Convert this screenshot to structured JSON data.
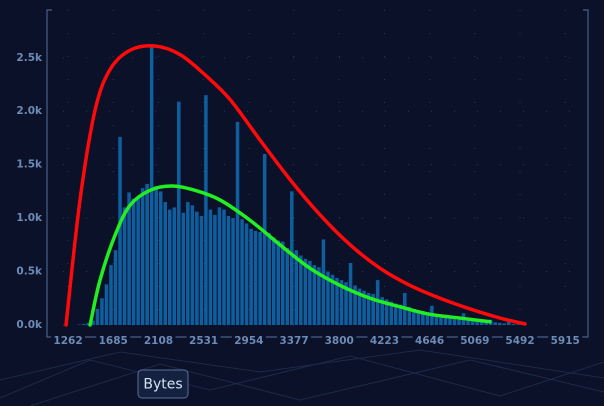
{
  "chart_data": {
    "type": "histogram",
    "xlabel": "Bytes",
    "bins": [
      1262,
      1304.3,
      1346.6,
      1388.9,
      1431.2,
      1473.5,
      1515.8,
      1558.1,
      1600.4,
      1642.7,
      1685,
      1727.3,
      1769.6,
      1811.9,
      1854.2,
      1896.5,
      1938.8,
      1981.1,
      2023.4,
      2065.7,
      2108,
      2150.3,
      2192.6,
      2234.9,
      2277.2,
      2319.5,
      2361.8,
      2404.1,
      2446.4,
      2488.7,
      2531,
      2573.3,
      2615.6,
      2657.9,
      2700.2,
      2742.5,
      2784.8,
      2827.1,
      2869.4,
      2911.7,
      2954,
      2996.3,
      3038.6,
      3080.9,
      3123.2,
      3165.5,
      3207.8,
      3250.1,
      3292.4,
      3334.7,
      3377,
      3419.3,
      3461.6,
      3503.9,
      3546.2,
      3588.5,
      3630.8,
      3673.1,
      3715.4,
      3757.7,
      3800,
      3842.3,
      3884.6,
      3926.9,
      3969.2,
      4011.5,
      4053.8,
      4096.1,
      4138.4,
      4180.7,
      4223,
      4265.3,
      4307.6,
      4349.9,
      4392.2,
      4434.5,
      4476.8,
      4519.1,
      4561.4,
      4603.7,
      4646,
      4688.3,
      4730.6,
      4772.9,
      4815.2,
      4857.5,
      4899.8,
      4942.1,
      4984.4,
      5026.7,
      5069,
      5111.3,
      5153.6,
      5195.9,
      5238.2,
      5280.5,
      5322.8,
      5365.1,
      5407.4,
      5449.7,
      5492
    ],
    "values": [
      0,
      0,
      5,
      10,
      20,
      40,
      150,
      250,
      380,
      560,
      700,
      1760,
      1100,
      1240,
      1180,
      1200,
      1280,
      1320,
      2600,
      1300,
      1250,
      1150,
      1080,
      1100,
      2090,
      1050,
      1150,
      1120,
      1060,
      1020,
      2150,
      1080,
      1030,
      1100,
      1080,
      1020,
      1000,
      1900,
      990,
      950,
      900,
      880,
      870,
      1600,
      860,
      820,
      790,
      780,
      720,
      1250,
      700,
      650,
      620,
      600,
      560,
      540,
      800,
      500,
      470,
      440,
      420,
      400,
      580,
      370,
      340,
      320,
      300,
      290,
      420,
      260,
      240,
      220,
      200,
      190,
      300,
      170,
      150,
      140,
      130,
      120,
      180,
      100,
      90,
      80,
      75,
      70,
      60,
      110,
      50,
      45,
      40,
      35,
      30,
      50,
      25,
      20,
      15,
      30,
      10,
      5
    ],
    "color": "#0f5f9f",
    "curves": [
      {
        "color": "#ff0a0a",
        "x": [
          1243,
          1374,
          1515,
          1655,
          1842,
          2076,
          2310,
          2544,
          2778,
          3059,
          3340,
          3621,
          3902,
          4183,
          4463,
          4744,
          5024,
          5305,
          5539
        ],
        "y": [
          0,
          1170,
          2010,
          2390,
          2570,
          2610,
          2530,
          2340,
          2110,
          1730,
          1360,
          1030,
          750,
          530,
          370,
          250,
          150,
          65,
          10
        ]
      },
      {
        "color": "#22ee22",
        "x": [
          1468,
          1561,
          1702,
          1842,
          2029,
          2235,
          2450,
          2684,
          2965,
          3246,
          3527,
          3808,
          4089,
          4370,
          4650,
          4931,
          5211
        ],
        "y": [
          0,
          420,
          840,
          1120,
          1260,
          1300,
          1260,
          1170,
          980,
          750,
          530,
          370,
          250,
          170,
          100,
          65,
          30
        ]
      }
    ],
    "xlim": [
      1065,
      6128
    ],
    "ylim": [
      0,
      2900
    ],
    "xticks": [
      1262,
      1685,
      2108,
      2531,
      2954,
      3377,
      3800,
      4223,
      4646,
      5069,
      5492,
      5915
    ],
    "yticks": [
      {
        "value": 0,
        "label": "0.0k"
      },
      {
        "value": 500,
        "label": "0.5k"
      },
      {
        "value": 1000,
        "label": "1.0k"
      },
      {
        "value": 1500,
        "label": "1.5k"
      },
      {
        "value": 2000,
        "label": "2.0k"
      },
      {
        "value": 2500,
        "label": "2.5k"
      }
    ],
    "grid": true
  }
}
